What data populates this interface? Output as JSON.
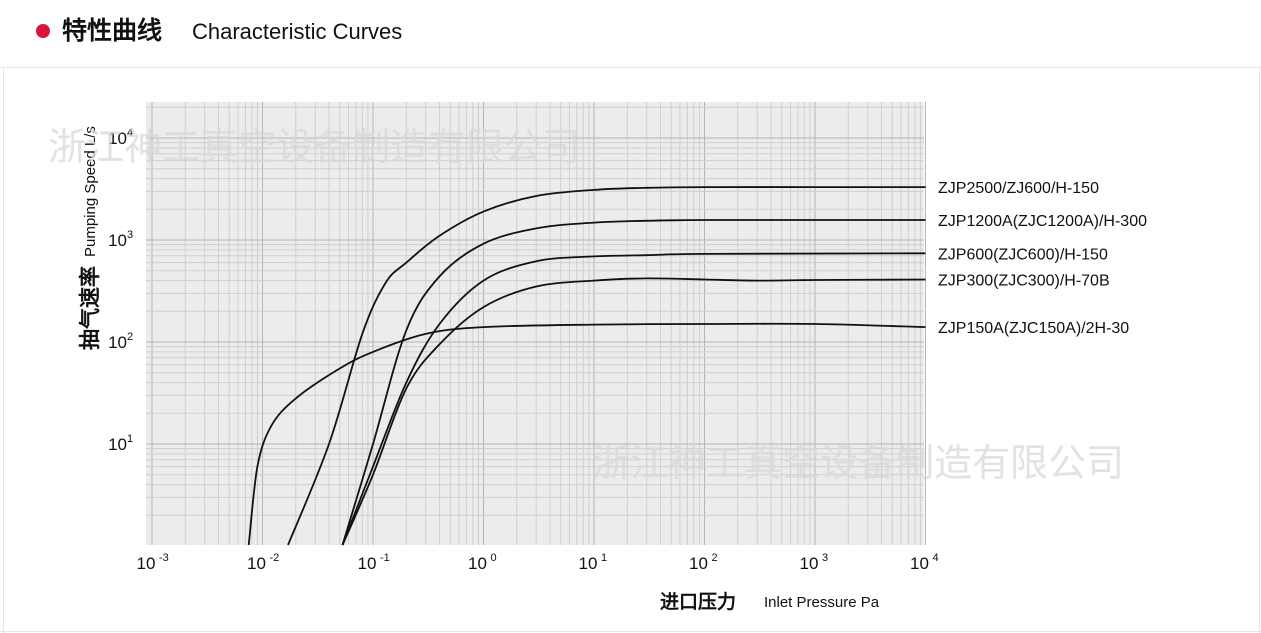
{
  "header": {
    "title_cn": "特性曲线",
    "title_en": "Characteristic Curves",
    "bullet_color": "#d7153a"
  },
  "watermark": "浙江神工真空设备制造有限公司",
  "chart_data": {
    "type": "line",
    "title": "",
    "xlabel_cn": "进口压力",
    "xlabel_en": "Inlet Pressure Pa",
    "ylabel_cn": "抽气速率",
    "ylabel_en": "Pumping Speed L/s",
    "x_scale": "log",
    "y_scale": "log",
    "xlim": [
      0.001,
      10000
    ],
    "ylim": [
      1,
      20000
    ],
    "grid": true,
    "x_ticks": [
      {
        "value": 0.001,
        "base": "10",
        "exp": "-3"
      },
      {
        "value": 0.01,
        "base": "10",
        "exp": "-2"
      },
      {
        "value": 0.1,
        "base": "10",
        "exp": "-1"
      },
      {
        "value": 1,
        "base": "10",
        "exp": "0"
      },
      {
        "value": 10,
        "base": "10",
        "exp": "1"
      },
      {
        "value": 100,
        "base": "10",
        "exp": "2"
      },
      {
        "value": 1000,
        "base": "10",
        "exp": "3"
      },
      {
        "value": 10000,
        "base": "10",
        "exp": "4"
      }
    ],
    "y_ticks": [
      {
        "value": 10,
        "base": "10",
        "exp": "1"
      },
      {
        "value": 100,
        "base": "10",
        "exp": "2"
      },
      {
        "value": 1000,
        "base": "10",
        "exp": "3"
      },
      {
        "value": 10000,
        "base": "10",
        "exp": "4"
      }
    ],
    "series": [
      {
        "name": "ZJP2500/ZJ600/H-150",
        "points": [
          [
            0.017,
            1
          ],
          [
            0.04,
            10
          ],
          [
            0.08,
            120
          ],
          [
            0.13,
            380
          ],
          [
            0.2,
            600
          ],
          [
            0.4,
            1100
          ],
          [
            1,
            1900
          ],
          [
            3,
            2700
          ],
          [
            10,
            3100
          ],
          [
            30,
            3250
          ],
          [
            100,
            3300
          ],
          [
            1000,
            3300
          ],
          [
            10000,
            3300
          ]
        ]
      },
      {
        "name": "ZJP1200A(ZJC1200A)/H-300",
        "points": [
          [
            0.053,
            1
          ],
          [
            0.1,
            10
          ],
          [
            0.2,
            130
          ],
          [
            0.4,
            440
          ],
          [
            1,
            920
          ],
          [
            3,
            1300
          ],
          [
            10,
            1480
          ],
          [
            50,
            1560
          ],
          [
            200,
            1570
          ],
          [
            10000,
            1570
          ]
        ]
      },
      {
        "name": "ZJP600(ZJC600)/H-150",
        "points": [
          [
            0.053,
            1
          ],
          [
            0.1,
            6
          ],
          [
            0.2,
            40
          ],
          [
            0.4,
            150
          ],
          [
            1,
            400
          ],
          [
            3,
            620
          ],
          [
            10,
            690
          ],
          [
            30,
            710
          ],
          [
            100,
            730
          ],
          [
            10000,
            740
          ]
        ]
      },
      {
        "name": "ZJP300(ZJC300)/H-70B",
        "points": [
          [
            0.053,
            1
          ],
          [
            0.1,
            5
          ],
          [
            0.2,
            35
          ],
          [
            0.4,
            95
          ],
          [
            1,
            220
          ],
          [
            3,
            350
          ],
          [
            10,
            400
          ],
          [
            30,
            420
          ],
          [
            100,
            410
          ],
          [
            300,
            400
          ],
          [
            1000,
            405
          ],
          [
            10000,
            410
          ]
        ]
      },
      {
        "name": "ZJP150A(ZJC150A)/2H-30",
        "points": [
          [
            0.0075,
            1
          ],
          [
            0.009,
            6
          ],
          [
            0.012,
            15
          ],
          [
            0.02,
            28
          ],
          [
            0.05,
            55
          ],
          [
            0.1,
            80
          ],
          [
            0.3,
            120
          ],
          [
            1,
            140
          ],
          [
            10,
            148
          ],
          [
            100,
            150
          ],
          [
            1000,
            150
          ],
          [
            10000,
            140
          ]
        ]
      }
    ]
  }
}
